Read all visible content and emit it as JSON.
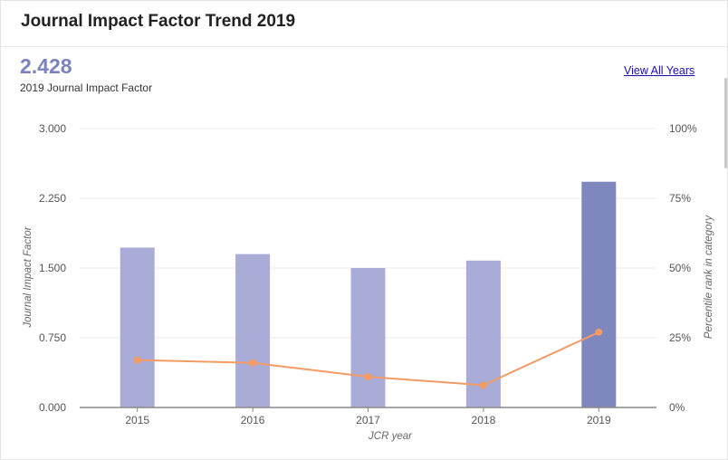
{
  "header": {
    "title": "Journal Impact Factor Trend 2019"
  },
  "kpi": {
    "value": "2.428",
    "label": "2019 Journal Impact Factor"
  },
  "link": {
    "view_all": "View All Years"
  },
  "colors": {
    "bar": "#a9acd6",
    "bar_highlight": "#7f87bf",
    "line": "#f49a63",
    "grid": "#e8e8e8",
    "baseline": "#888888"
  },
  "chart_data": {
    "type": "bar",
    "categories": [
      "2015",
      "2016",
      "2017",
      "2018",
      "2019"
    ],
    "series": [
      {
        "values": [
          1.72,
          1.65,
          1.5,
          1.58,
          2.428
        ],
        "axis": "left"
      },
      {
        "values": [
          17,
          16,
          11,
          8,
          27
        ],
        "axis": "right"
      }
    ],
    "yticks_left": [
      "3.000",
      "2.250",
      "1.500",
      "0.750",
      "0.000"
    ],
    "yticks_right": [
      "100%",
      "75%",
      "50%",
      "25%",
      "0%"
    ],
    "ylim_left": [
      0,
      3
    ],
    "ylim_right": [
      0,
      100
    ],
    "xlabel": "JCR year",
    "ylabel_left": "Journal Impact Factor",
    "ylabel_right": "Percentile rank in category",
    "highlight_category": "2019",
    "grid": true
  }
}
